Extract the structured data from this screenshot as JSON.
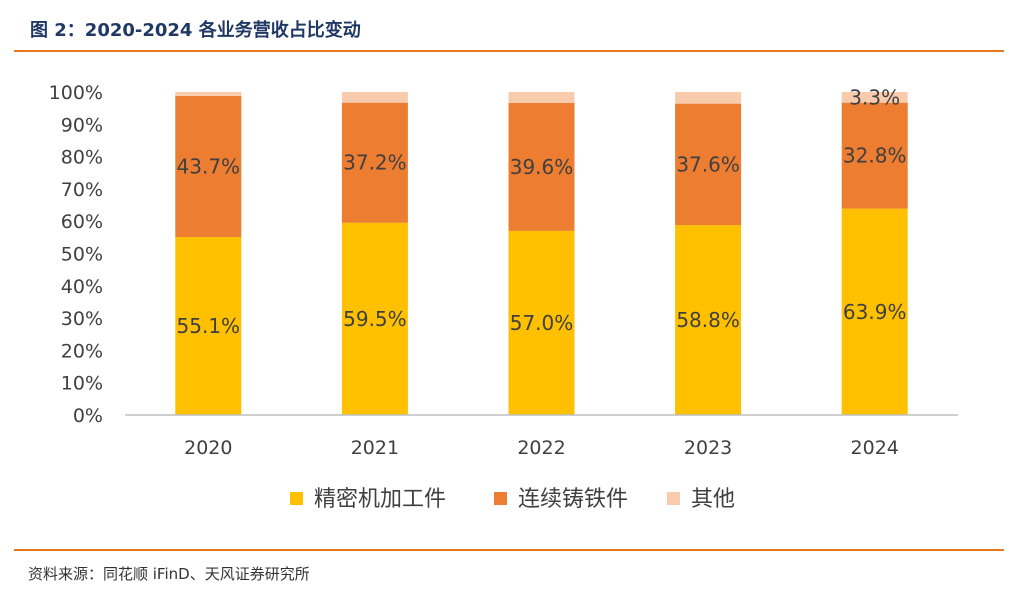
{
  "header": {
    "title": "图 2：2020-2024 各业务营收占比变动"
  },
  "footer": {
    "source": "资料来源：同花顺 iFinD、天风证券研究所"
  },
  "chart_data": {
    "type": "bar",
    "stacked": true,
    "categories": [
      "2020",
      "2021",
      "2022",
      "2023",
      "2024"
    ],
    "series": [
      {
        "name": "精密机加工件",
        "color": "#ffc000",
        "values": [
          55.1,
          59.5,
          57.0,
          58.8,
          63.9
        ],
        "labels": [
          "55.1%",
          "59.5%",
          "57.0%",
          "58.8%",
          "63.9%"
        ]
      },
      {
        "name": "连续铸铁件",
        "color": "#ed7d31",
        "values": [
          43.7,
          37.2,
          39.6,
          37.6,
          32.8
        ],
        "labels": [
          "43.7%",
          "37.2%",
          "39.6%",
          "37.6%",
          "32.8%"
        ]
      },
      {
        "name": "其他",
        "color": "#f8cbad",
        "values": [
          1.2,
          3.3,
          3.4,
          3.6,
          3.3
        ],
        "labels": [
          "",
          "",
          "",
          "",
          "3.3%"
        ]
      }
    ],
    "ylim": [
      0,
      100
    ],
    "yticks": [
      "0%",
      "10%",
      "20%",
      "30%",
      "40%",
      "50%",
      "60%",
      "70%",
      "80%",
      "90%",
      "100%"
    ],
    "grid": false,
    "legend_position": "bottom"
  }
}
